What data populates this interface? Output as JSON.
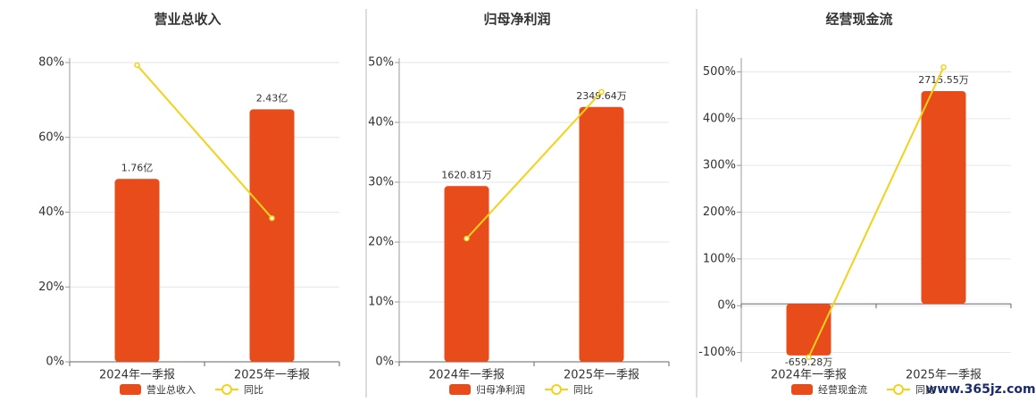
{
  "chart_data": [
    {
      "type": "bar-line",
      "title": "营业总收入",
      "categories": [
        "2024年一季报",
        "2025年一季报"
      ],
      "series": [
        {
          "name": "营业总收入",
          "type": "bar",
          "axis": "y2",
          "color": "#e84c1a",
          "values": [
            1.76,
            2.43
          ],
          "value_labels": [
            "1.76亿",
            "2.43亿"
          ]
        },
        {
          "name": "同比",
          "type": "line",
          "color": "#f2d21b",
          "values": [
            79.3,
            38.4
          ]
        }
      ],
      "ylim": [
        0,
        80
      ],
      "yticks": [
        {
          "value": 0,
          "label": "0%"
        },
        {
          "value": 20,
          "label": "20%"
        },
        {
          "value": 40,
          "label": "40%"
        },
        {
          "value": 60,
          "label": "60%"
        },
        {
          "value": 80,
          "label": "80%"
        }
      ],
      "y2lim": [
        0,
        2.88
      ],
      "grid": true
    },
    {
      "type": "bar-line",
      "title": "归母净利润",
      "categories": [
        "2024年一季报",
        "2025年一季报"
      ],
      "series": [
        {
          "name": "归母净利润",
          "type": "bar",
          "axis": "y2",
          "color": "#e84c1a",
          "values": [
            1620.81,
            2349.64
          ],
          "value_labels": [
            "1620.81万",
            "2349.64万"
          ]
        },
        {
          "name": "同比",
          "type": "line",
          "color": "#f2d21b",
          "values": [
            20.6,
            45.1
          ]
        }
      ],
      "ylim": [
        0,
        50
      ],
      "yticks": [
        {
          "value": 0,
          "label": "0%"
        },
        {
          "value": 10,
          "label": "10%"
        },
        {
          "value": 20,
          "label": "20%"
        },
        {
          "value": 30,
          "label": "30%"
        },
        {
          "value": 40,
          "label": "40%"
        },
        {
          "value": 50,
          "label": "50%"
        }
      ],
      "y2lim": [
        0,
        2760
      ],
      "grid": true
    },
    {
      "type": "bar-line",
      "title": "经营现金流",
      "categories": [
        "2024年一季报",
        "2025年一季报"
      ],
      "series": [
        {
          "name": "经营现金流",
          "type": "bar",
          "axis": "y2",
          "color": "#e84c1a",
          "values": [
            -659.28,
            2715.55
          ],
          "value_labels": [
            "-659.28万",
            "2715.55万"
          ]
        },
        {
          "name": "同比",
          "type": "line",
          "color": "#f2d21b",
          "values": [
            -110,
            510
          ]
        }
      ],
      "ylim": [
        -120,
        520
      ],
      "yticks": [
        {
          "value": -100,
          "label": "-100%"
        },
        {
          "value": 0,
          "label": "0%"
        },
        {
          "value": 100,
          "label": "100%"
        },
        {
          "value": 200,
          "label": "200%"
        },
        {
          "value": 300,
          "label": "300%"
        },
        {
          "value": 400,
          "label": "400%"
        },
        {
          "value": 500,
          "label": "500%"
        }
      ],
      "y2lim": [
        -740,
        3080
      ],
      "grid": true
    }
  ],
  "watermark": "www.365jz.com"
}
